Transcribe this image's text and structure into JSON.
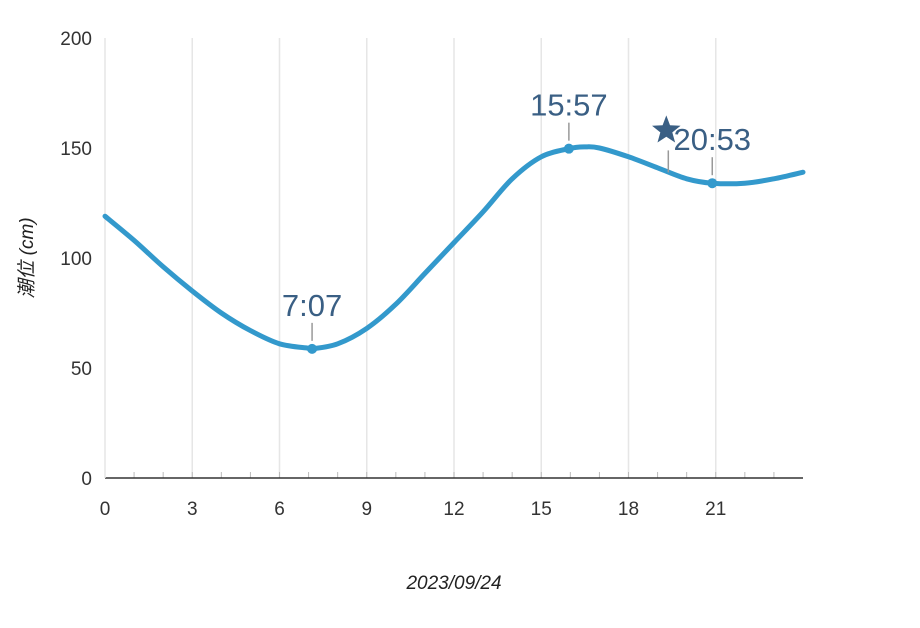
{
  "chart_data": {
    "type": "line",
    "title": "",
    "xlabel": "2023/09/24",
    "ylabel": "潮位 (cm)",
    "xlim": [
      0,
      24
    ],
    "ylim": [
      0,
      200
    ],
    "x_ticks": [
      0,
      3,
      6,
      9,
      12,
      15,
      18,
      21
    ],
    "y_ticks": [
      0,
      50,
      100,
      150,
      200
    ],
    "grid": "vertical",
    "legend": "none",
    "colors": {
      "line": "#3399cc",
      "annotation": "#3a5f84",
      "grid": "#e6e6e6",
      "axis": "#333333"
    },
    "series": [
      {
        "x": [
          0,
          1,
          2,
          3,
          4,
          5,
          6,
          7,
          7.12,
          8,
          9,
          10,
          11,
          12,
          13,
          14,
          15,
          15.95,
          16.5,
          17,
          18,
          19,
          20,
          20.88,
          22,
          23,
          24
        ],
        "y": [
          119,
          108,
          96,
          85,
          75,
          67,
          61,
          59,
          58.7,
          61,
          68,
          79,
          93,
          107,
          121,
          136,
          146,
          149.7,
          150.5,
          150,
          146,
          141,
          136,
          134,
          134,
          136,
          139
        ]
      }
    ],
    "annotations": [
      {
        "x": 7.12,
        "y": 58.7,
        "label": "7:07"
      },
      {
        "x": 15.95,
        "y": 149.7,
        "label": "15:57"
      },
      {
        "x": 20.88,
        "y": 134,
        "label": "20:53"
      }
    ],
    "marker": {
      "x": 19.3,
      "y": 158,
      "icon": "star-icon"
    }
  }
}
